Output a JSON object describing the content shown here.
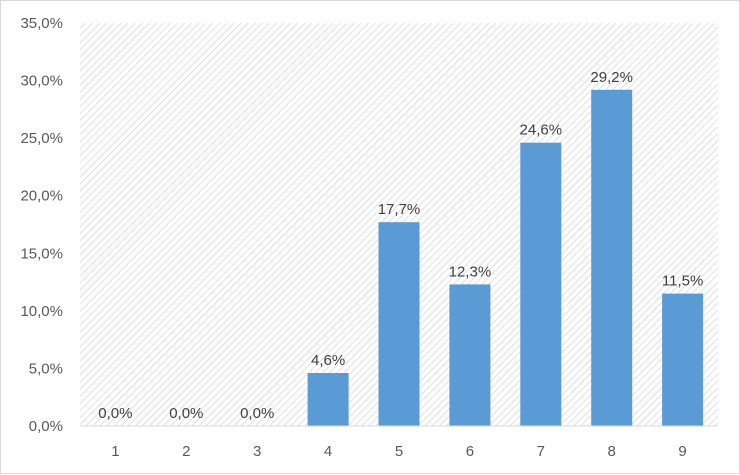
{
  "chart_data": {
    "type": "bar",
    "title": "",
    "xlabel": "",
    "ylabel": "",
    "categories": [
      "1",
      "2",
      "3",
      "4",
      "5",
      "6",
      "7",
      "8",
      "9"
    ],
    "values": [
      0.0,
      0.0,
      0.0,
      4.6,
      17.7,
      12.3,
      24.6,
      29.2,
      11.5
    ],
    "data_labels": [
      "0,0%",
      "0,0%",
      "0,0%",
      "4,6%",
      "17,7%",
      "12,3%",
      "24,6%",
      "29,2%",
      "11,5%"
    ],
    "ylim": [
      0,
      35
    ],
    "y_ticks": [
      0,
      5,
      10,
      15,
      20,
      25,
      30,
      35
    ],
    "y_tick_labels": [
      "0,0%",
      "5,0%",
      "10,0%",
      "15,0%",
      "20,0%",
      "25,0%",
      "30,0%",
      "35,0%"
    ],
    "bar_color": "#5b9bd5",
    "plot_background": "diagonal hatch pattern",
    "grid": false,
    "legend": "none"
  }
}
